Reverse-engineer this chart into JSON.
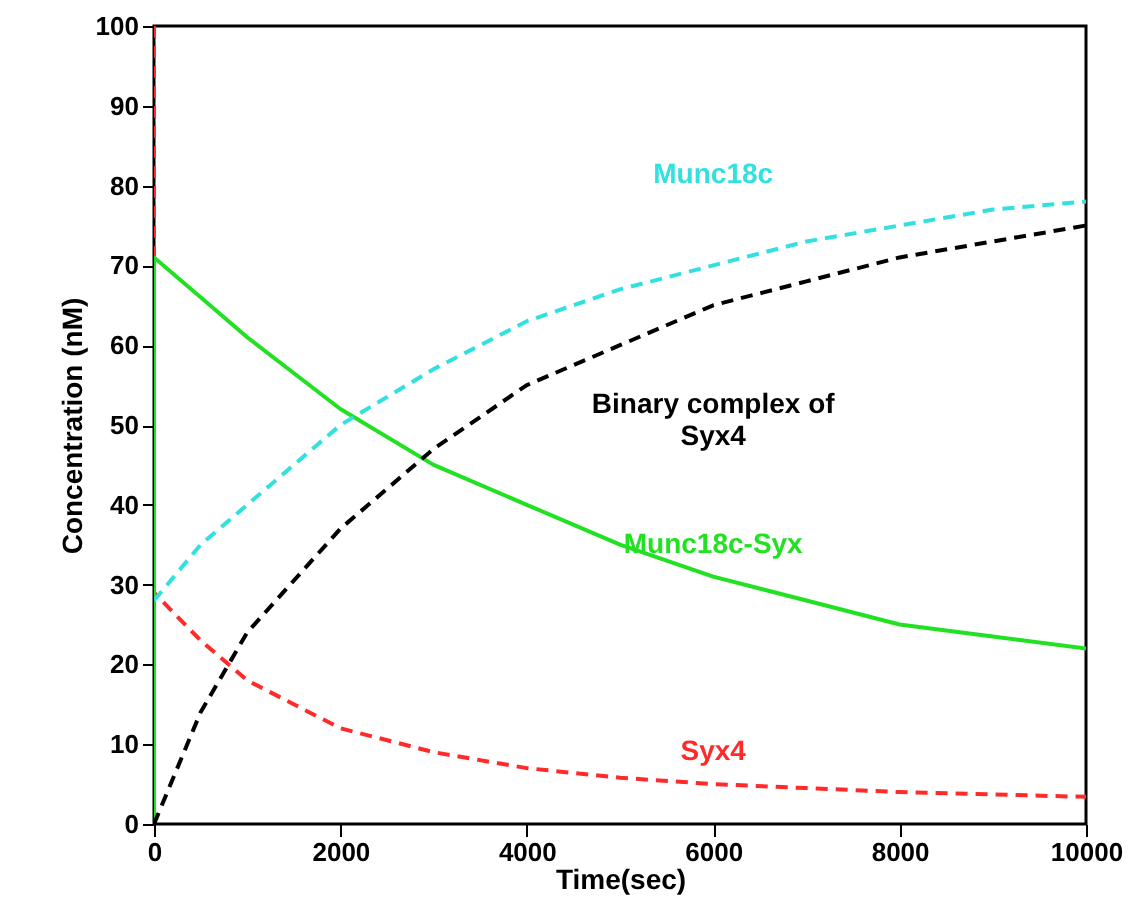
{
  "chart_data": {
    "type": "line",
    "xlabel": "Time(sec)",
    "ylabel": "Concentration (nM)",
    "xlim": [
      0,
      10000
    ],
    "ylim": [
      0,
      100
    ],
    "xticks": [
      0,
      2000,
      4000,
      6000,
      8000,
      10000
    ],
    "yticks": [
      0,
      10,
      20,
      30,
      40,
      50,
      60,
      70,
      80,
      90,
      100
    ],
    "grid": false,
    "marker": "none",
    "series": [
      {
        "name": "Syx4",
        "color": "#ff2a2a",
        "line_style": "dashed",
        "x": [
          0,
          0,
          500,
          1000,
          2000,
          3000,
          4000,
          5000,
          6000,
          7000,
          8000,
          9000,
          10000
        ],
        "values": [
          100,
          29,
          23,
          18,
          12,
          9,
          7,
          5.8,
          5,
          4.5,
          4,
          3.7,
          3.4
        ]
      },
      {
        "name": "Munc18c-Syx",
        "color": "#22e022",
        "line_style": "solid",
        "x": [
          0,
          0,
          500,
          1000,
          2000,
          3000,
          4000,
          5000,
          6000,
          7000,
          8000,
          9000,
          10000
        ],
        "values": [
          0,
          71,
          66,
          61,
          52,
          45,
          40,
          35,
          31,
          28,
          25,
          23.5,
          22
        ]
      },
      {
        "name": "Munc18c",
        "color": "#33e0e0",
        "line_style": "dashed",
        "x": [
          0,
          500,
          1000,
          2000,
          3000,
          4000,
          5000,
          6000,
          7000,
          8000,
          9000,
          10000
        ],
        "values": [
          28,
          35,
          40,
          50,
          57,
          63,
          67,
          70,
          73,
          75,
          77,
          78
        ]
      },
      {
        "name": "Binary complex of\nSyx4",
        "color": "#000000",
        "line_style": "dashed",
        "x": [
          0,
          500,
          1000,
          2000,
          3000,
          4000,
          5000,
          6000,
          7000,
          8000,
          9000,
          10000
        ],
        "values": [
          0,
          14,
          24,
          37,
          47,
          55,
          60,
          65,
          68,
          71,
          73,
          75
        ]
      }
    ]
  }
}
